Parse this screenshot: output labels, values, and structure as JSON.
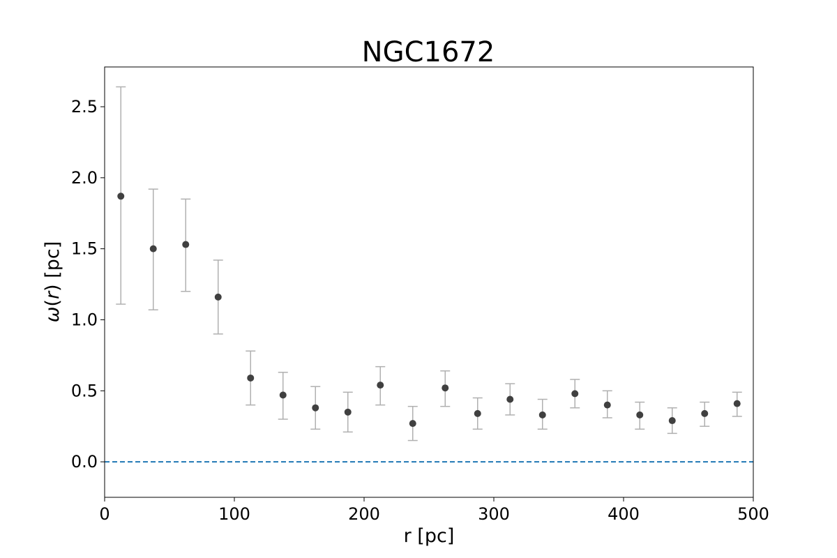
{
  "chart_data": {
    "type": "scatter",
    "title": "NGC1672",
    "xlabel": "r [pc]",
    "ylabel_symbol": "ω",
    "ylabel_open": "(",
    "ylabel_var": "r",
    "ylabel_close": ") [pc]",
    "xlim": [
      0,
      500
    ],
    "ylim": [
      -0.25,
      2.78
    ],
    "xticks": [
      0,
      100,
      200,
      300,
      400,
      500
    ],
    "yticks": [
      0.0,
      0.5,
      1.0,
      1.5,
      2.0,
      2.5
    ],
    "xtick_labels": [
      "0",
      "100",
      "200",
      "300",
      "400",
      "500"
    ],
    "ytick_labels": [
      "0.0",
      "0.5",
      "1.0",
      "1.5",
      "2.0",
      "2.5"
    ],
    "grid": false,
    "reference_line": {
      "y": 0.0,
      "style": "dashed",
      "color": "#1f77b4"
    },
    "marker_color": "#404040",
    "errorbar_color": "#b0b0b0",
    "points": [
      {
        "x": 12.5,
        "y": 1.87,
        "ylow": 1.11,
        "yhigh": 2.64
      },
      {
        "x": 37.5,
        "y": 1.5,
        "ylow": 1.07,
        "yhigh": 1.92
      },
      {
        "x": 62.5,
        "y": 1.53,
        "ylow": 1.2,
        "yhigh": 1.85
      },
      {
        "x": 87.5,
        "y": 1.16,
        "ylow": 0.9,
        "yhigh": 1.42
      },
      {
        "x": 112.5,
        "y": 0.59,
        "ylow": 0.4,
        "yhigh": 0.78
      },
      {
        "x": 137.5,
        "y": 0.47,
        "ylow": 0.3,
        "yhigh": 0.63
      },
      {
        "x": 162.5,
        "y": 0.38,
        "ylow": 0.23,
        "yhigh": 0.53
      },
      {
        "x": 187.5,
        "y": 0.35,
        "ylow": 0.21,
        "yhigh": 0.49
      },
      {
        "x": 212.5,
        "y": 0.54,
        "ylow": 0.4,
        "yhigh": 0.67
      },
      {
        "x": 237.5,
        "y": 0.27,
        "ylow": 0.15,
        "yhigh": 0.39
      },
      {
        "x": 262.5,
        "y": 0.52,
        "ylow": 0.39,
        "yhigh": 0.64
      },
      {
        "x": 287.5,
        "y": 0.34,
        "ylow": 0.23,
        "yhigh": 0.45
      },
      {
        "x": 312.5,
        "y": 0.44,
        "ylow": 0.33,
        "yhigh": 0.55
      },
      {
        "x": 337.5,
        "y": 0.33,
        "ylow": 0.23,
        "yhigh": 0.44
      },
      {
        "x": 362.5,
        "y": 0.48,
        "ylow": 0.38,
        "yhigh": 0.58
      },
      {
        "x": 387.5,
        "y": 0.4,
        "ylow": 0.31,
        "yhigh": 0.5
      },
      {
        "x": 412.5,
        "y": 0.33,
        "ylow": 0.23,
        "yhigh": 0.42
      },
      {
        "x": 437.5,
        "y": 0.29,
        "ylow": 0.2,
        "yhigh": 0.38
      },
      {
        "x": 462.5,
        "y": 0.34,
        "ylow": 0.25,
        "yhigh": 0.42
      },
      {
        "x": 487.5,
        "y": 0.41,
        "ylow": 0.32,
        "yhigh": 0.49
      }
    ]
  }
}
